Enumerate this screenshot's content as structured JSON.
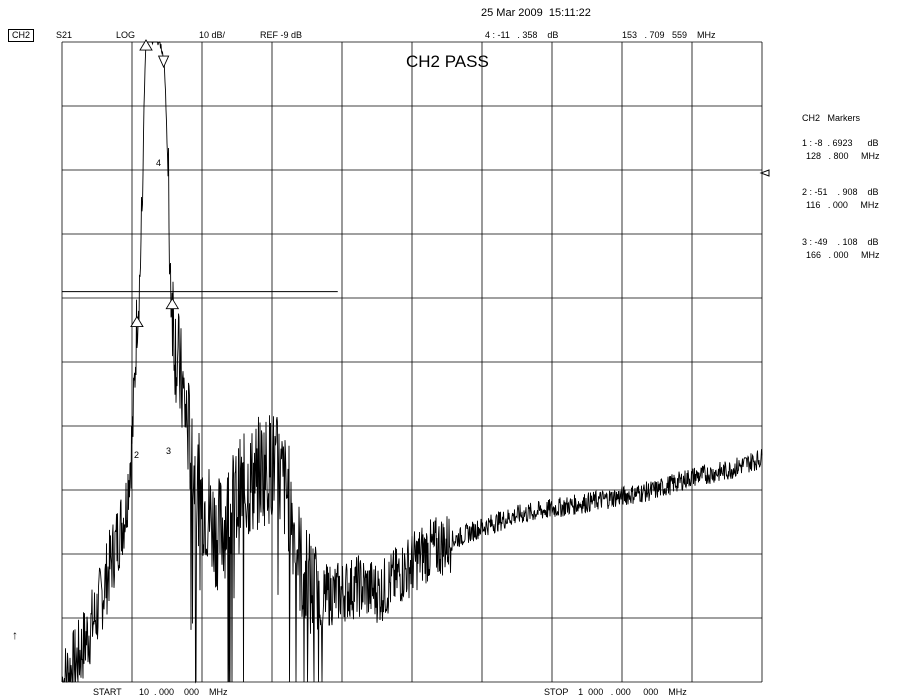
{
  "datetime": "25 Mar 2009  15:11:22",
  "header": {
    "channel": "CH2",
    "parameter": "S21",
    "format": "LOG",
    "scale": "10 dB/",
    "reference": "REF -9 dB",
    "active_marker": "4 : -11   . 358    dB",
    "active_marker_freq": "153   . 709   559    MHz"
  },
  "status": "CH2 PASS",
  "footer": {
    "start": "START       10  . 000    000    MHz",
    "stop": "STOP    1  000   . 000     000    MHz"
  },
  "markers_panel": {
    "title": "CH2   Markers",
    "markers": [
      {
        "line1": "1 : -8  . 6923      dB",
        "line2": "128   . 800     MHz"
      },
      {
        "line1": "2 : -51    . 908    dB",
        "line2": "116   . 000     MHz"
      },
      {
        "line1": "3 : -49    . 108    dB",
        "line2": "166   . 000     MHz"
      }
    ]
  },
  "marker_labels": [
    "2",
    "3",
    "4"
  ],
  "arrow_glyph": "↑",
  "chart_data": {
    "type": "line",
    "xlabel": "",
    "ylabel": "",
    "x_unit": "MHz",
    "y_unit": "dB",
    "xlim": [
      10,
      1000
    ],
    "ylim": [
      -109,
      -9
    ],
    "grid": true,
    "series": [
      {
        "x": [
          10,
          30,
          60,
          80,
          100,
          110,
          116,
          120,
          124,
          126,
          128.8,
          135,
          145,
          150,
          153.7,
          156,
          160,
          163,
          166,
          170,
          185,
          200,
          230,
          260,
          290,
          310,
          330,
          350,
          370,
          400,
          430,
          460,
          480,
          500,
          520,
          560,
          600,
          650,
          700,
          750,
          800,
          850,
          900,
          950,
          1000
        ],
        "y": [
          -109,
          -106,
          -98,
          -90,
          -82,
          -70,
          -51.9,
          -46,
          -33,
          -19,
          -8.7,
          -8.6,
          -8.6,
          -9.6,
          -11.4,
          -15,
          -30,
          -44,
          -49.1,
          -56,
          -67,
          -78,
          -86,
          -80,
          -76,
          -75,
          -80,
          -92,
          -96,
          -95,
          -94,
          -95,
          -93,
          -91,
          -89,
          -87,
          -85,
          -83,
          -82,
          -81,
          -80,
          -79,
          -77,
          -76,
          -74
        ]
      }
    ],
    "limit_lines": [
      {
        "x": [
          10,
          400
        ],
        "y": [
          -48,
          -48
        ]
      }
    ],
    "markers": [
      {
        "id": "1",
        "x": 128.8,
        "y": -8.6923
      },
      {
        "id": "2",
        "x": 116,
        "y": -51.908
      },
      {
        "id": "3",
        "x": 166,
        "y": -49.108
      },
      {
        "id": "4",
        "x": 153.709559,
        "y": -11.358
      }
    ]
  }
}
